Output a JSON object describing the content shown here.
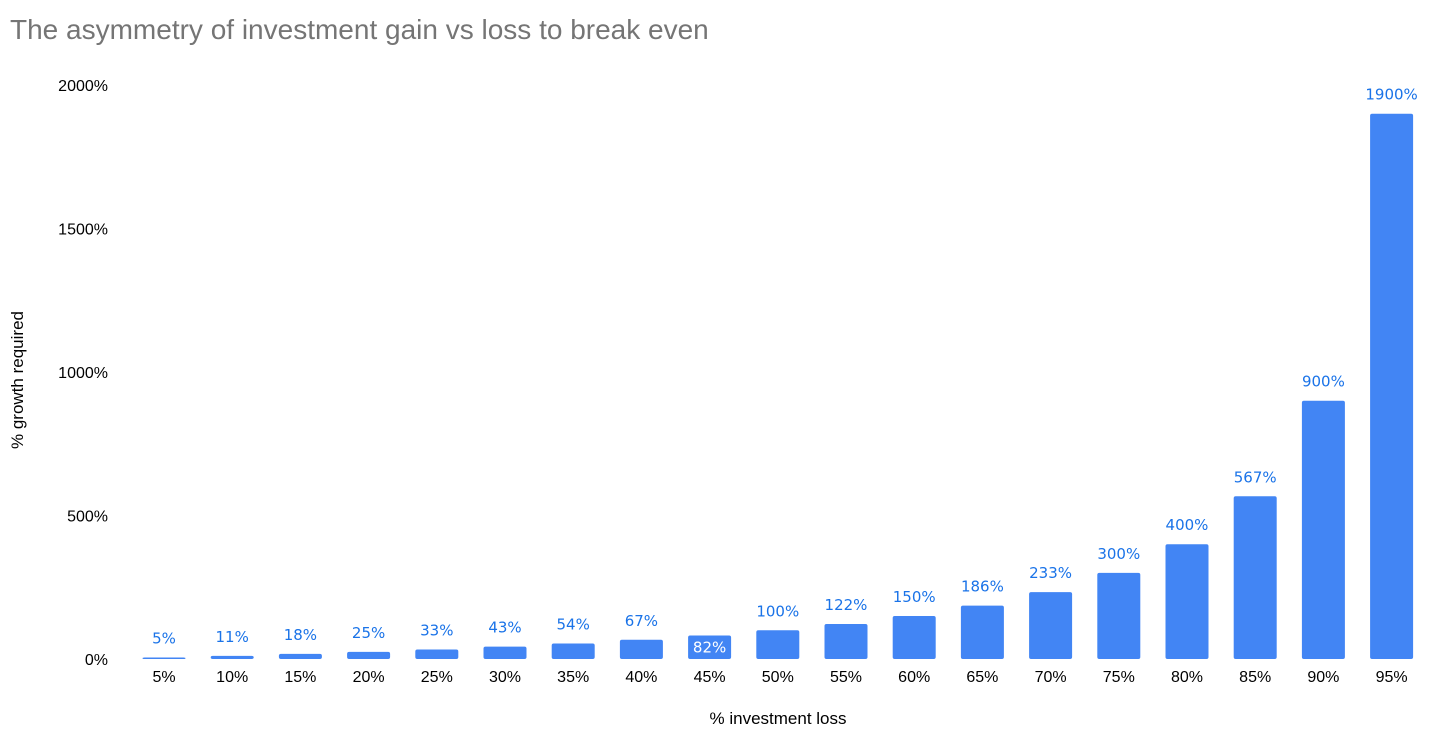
{
  "chart_data": {
    "type": "bar",
    "title": "The asymmetry of investment gain vs loss to break even",
    "xlabel": "% investment loss",
    "ylabel": "% growth required",
    "categories": [
      "5%",
      "10%",
      "15%",
      "20%",
      "25%",
      "30%",
      "35%",
      "40%",
      "45%",
      "50%",
      "55%",
      "60%",
      "65%",
      "70%",
      "75%",
      "80%",
      "85%",
      "90%",
      "95%"
    ],
    "values": [
      5,
      11,
      18,
      25,
      33,
      43,
      54,
      67,
      82,
      100,
      122,
      150,
      186,
      233,
      300,
      400,
      567,
      900,
      1900
    ],
    "data_labels": [
      "5%",
      "11%",
      "18%",
      "25%",
      "33%",
      "43%",
      "54%",
      "67%",
      "82%",
      "100%",
      "122%",
      "150%",
      "186%",
      "233%",
      "300%",
      "400%",
      "567%",
      "900%",
      "1900%"
    ],
    "ylim": [
      0,
      2000
    ],
    "yticks": [
      0,
      500,
      1000,
      1500,
      2000
    ],
    "ytick_labels": [
      "0%",
      "500%",
      "1000%",
      "1500%",
      "2000%"
    ],
    "bar_color": "#4285f4",
    "label_color": "#1a73e8",
    "grid": false,
    "legend": "none"
  }
}
